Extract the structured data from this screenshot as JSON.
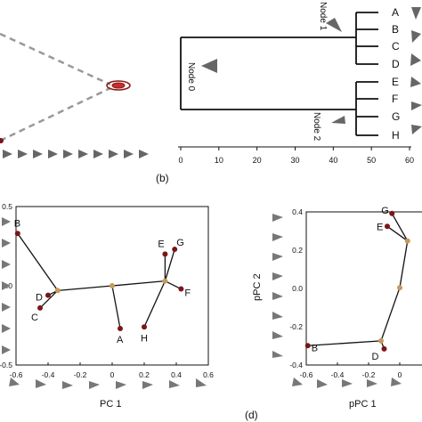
{
  "panel_labels": {
    "b": "(b)",
    "d": "(d)"
  },
  "colors": {
    "node": "#7a1518",
    "center": "#c49a5a",
    "line": "#111111",
    "dashed": "#999999",
    "arrow": "#666666"
  },
  "dendrogram": {
    "leaves": [
      "A",
      "B",
      "C",
      "D",
      "E",
      "F",
      "G",
      "H"
    ],
    "node_labels": {
      "node0": "Node 0",
      "node1": "Node 1",
      "node2": "Node 2"
    },
    "axis_ticks": [
      "0",
      "10",
      "20",
      "30",
      "40",
      "50",
      "60"
    ]
  },
  "chart_data": [
    {
      "type": "scatter",
      "title": "",
      "xlabel": "PC 1",
      "ylabel": "",
      "xlim": [
        -0.6,
        0.6
      ],
      "ylim": [
        -0.5,
        0.5
      ],
      "x_ticks": [
        "-0.6",
        "-0.4",
        "-0.2",
        "0",
        "0.2",
        "0.4",
        "0.6"
      ],
      "y_ticks": [
        "0.5",
        "0.0",
        "-0.5"
      ],
      "points": [
        {
          "label": "A",
          "x": 0.05,
          "y": -0.27
        },
        {
          "label": "B",
          "x": -0.59,
          "y": 0.33
        },
        {
          "label": "C",
          "x": -0.45,
          "y": -0.14
        },
        {
          "label": "D",
          "x": -0.4,
          "y": -0.06
        },
        {
          "label": "E",
          "x": 0.33,
          "y": 0.2
        },
        {
          "label": "F",
          "x": 0.43,
          "y": -0.02
        },
        {
          "label": "G",
          "x": 0.39,
          "y": 0.23
        },
        {
          "label": "H",
          "x": 0.2,
          "y": -0.26
        }
      ],
      "centers": [
        {
          "x": -0.34,
          "y": -0.03
        },
        {
          "x": 0.0,
          "y": 0.0
        },
        {
          "x": 0.33,
          "y": 0.03
        }
      ]
    },
    {
      "type": "scatter",
      "title": "",
      "xlabel": "pPC 1",
      "ylabel": "pPC 2",
      "xlim": [
        -0.6,
        0.2
      ],
      "ylim": [
        -0.45,
        0.5
      ],
      "x_ticks": [
        "-0.6",
        "-0.4",
        "-0.2",
        "0",
        "0"
      ],
      "y_ticks": [
        "0.4",
        "0.2",
        "0.0",
        "-0.2",
        "-0.4"
      ],
      "points": [
        {
          "label": "B",
          "x": -0.59,
          "y": -0.33
        },
        {
          "label": "D",
          "x": -0.1,
          "y": -0.35
        },
        {
          "label": "E",
          "x": -0.08,
          "y": 0.41
        },
        {
          "label": "G",
          "x": -0.05,
          "y": 0.49
        }
      ],
      "centers": [
        {
          "x": -0.12,
          "y": -0.3
        },
        {
          "x": 0.0,
          "y": 0.03
        },
        {
          "x": 0.05,
          "y": 0.32
        }
      ]
    }
  ]
}
